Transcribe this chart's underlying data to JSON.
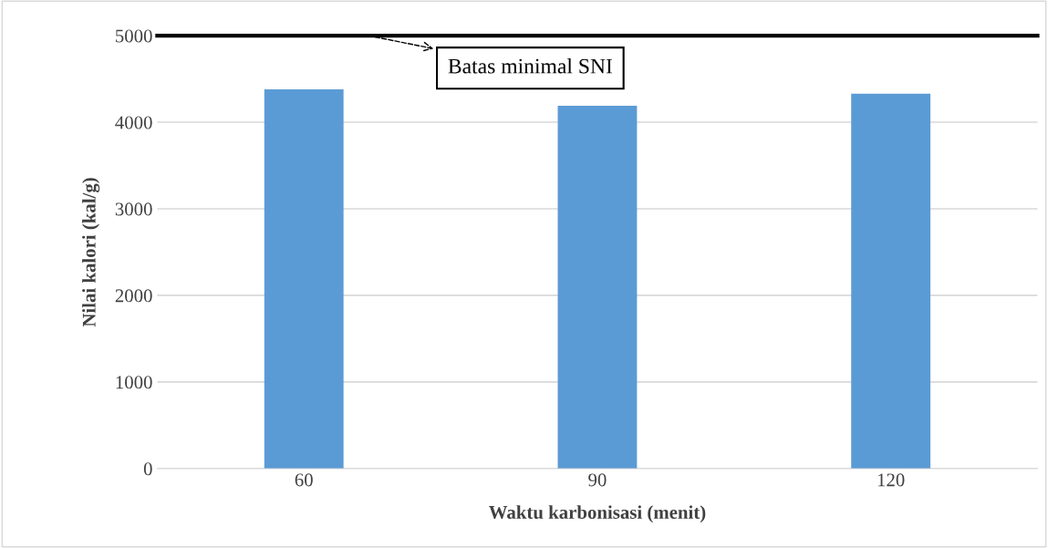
{
  "chart_data": {
    "type": "bar",
    "categories": [
      "60",
      "90",
      "120"
    ],
    "values": [
      4380,
      4190,
      4330
    ],
    "color": "#5b9bd5",
    "xlabel": "Waktu karbonisasi (menit)",
    "ylabel": "Nilai kalori (kal/g)",
    "ylim": [
      0,
      5000
    ],
    "yticks": [
      0,
      1000,
      2000,
      3000,
      4000,
      5000
    ],
    "grid": "y",
    "ref_lines": [
      {
        "axis": "y",
        "value": 5000,
        "label": "Batas minimal SNI",
        "color": "#000000",
        "line_style": "solid"
      }
    ]
  }
}
